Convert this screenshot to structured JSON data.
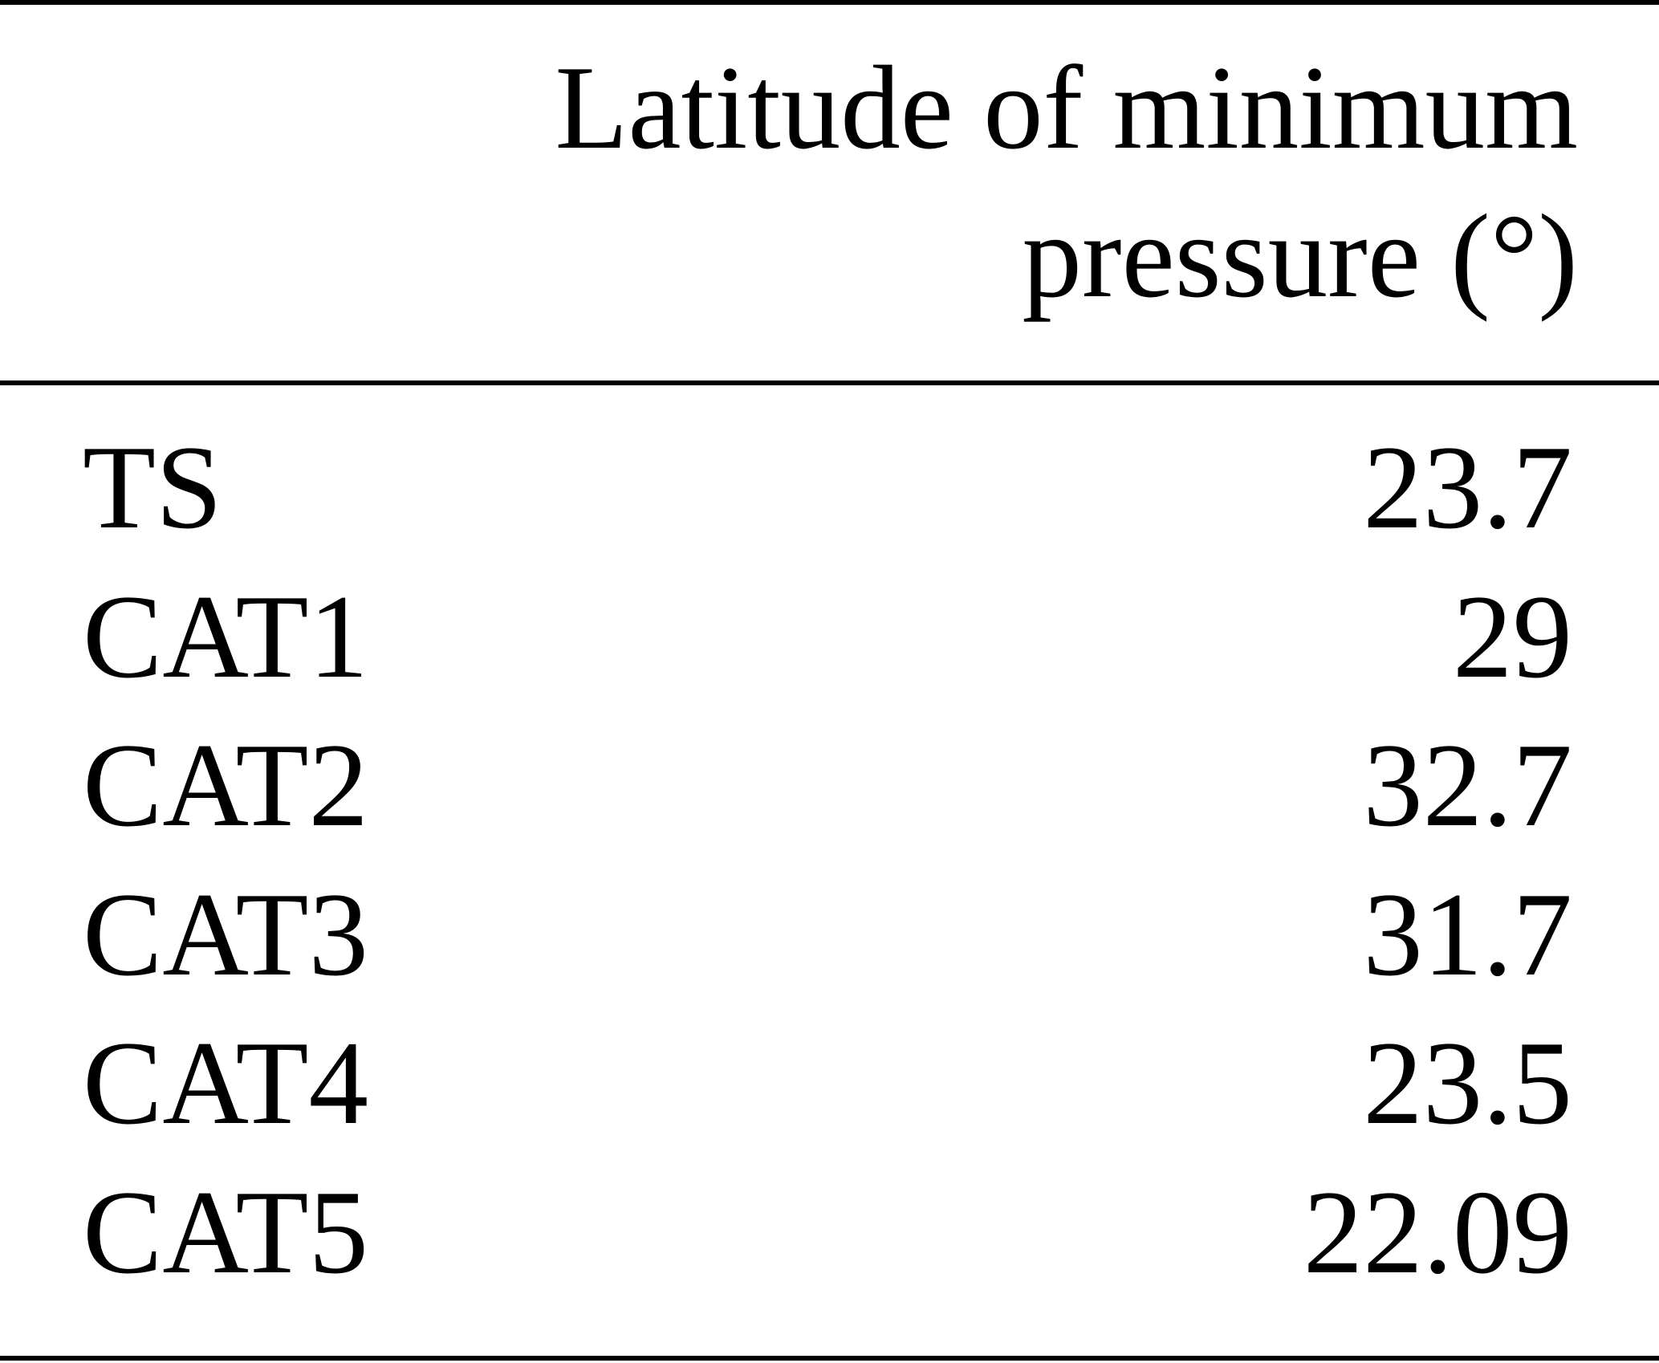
{
  "table": {
    "header": "Latitude of minimum pressure (°)",
    "rows": [
      [
        "TS",
        23.7
      ],
      [
        "CAT1",
        29
      ],
      [
        "CAT2",
        32.7
      ],
      [
        "CAT3",
        31.7
      ],
      [
        "CAT4",
        23.5
      ],
      [
        "CAT5",
        22.09
      ]
    ]
  }
}
